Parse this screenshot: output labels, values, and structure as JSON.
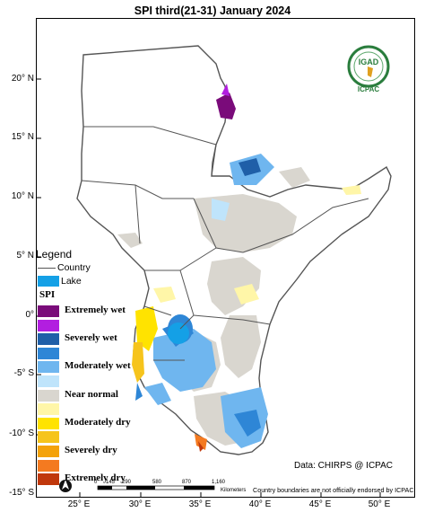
{
  "title": "SPI  third(21-31) January 2024",
  "y_axis_labels": [
    "20° N",
    "15° N",
    "10° N",
    "5° N",
    "0°",
    "-5° S",
    "-10° S",
    "-15° S"
  ],
  "x_axis_labels": [
    "25° E",
    "30° E",
    "35° E",
    "40° E",
    "45° E",
    "50° E"
  ],
  "legend": {
    "title": "Legend",
    "country_label": "Country",
    "lake_label": "Lake",
    "lake_color": "#14a0e6",
    "spi_title": "SPI",
    "classes": [
      {
        "label": "Extremely wet",
        "color": "#7a0b7a"
      },
      {
        "label": "",
        "color": "#b21ee0"
      },
      {
        "label": "Severely wet",
        "color": "#1f5fa8"
      },
      {
        "label": "",
        "color": "#2e86d6"
      },
      {
        "label": "Moderately wet",
        "color": "#6fb6ef"
      },
      {
        "label": "",
        "color": "#bfe4fb"
      },
      {
        "label": "Near normal",
        "color": "#d9d6cf"
      },
      {
        "label": "",
        "color": "#fff6a8"
      },
      {
        "label": "Moderately dry",
        "color": "#ffe300"
      },
      {
        "label": "",
        "color": "#f6c41c"
      },
      {
        "label": "Severely dry",
        "color": "#f4a20a"
      },
      {
        "label": "",
        "color": "#f47a20"
      },
      {
        "label": "Extremely dry",
        "color": "#c0380c"
      }
    ]
  },
  "scale_bar": {
    "ticks": [
      "0",
      "145",
      "290",
      "580",
      "870",
      "1,160"
    ],
    "unit": "Kilometers"
  },
  "logo": {
    "text": "IGAD",
    "subtext": "ICPAC",
    "icon": "igad-icpac-logo"
  },
  "data_source": "Data: CHIRPS @ ICPAC",
  "disclaimer": "Country boundaries are not officially endorsed by ICPAC",
  "north_arrow_icon": "north-arrow-icon"
}
